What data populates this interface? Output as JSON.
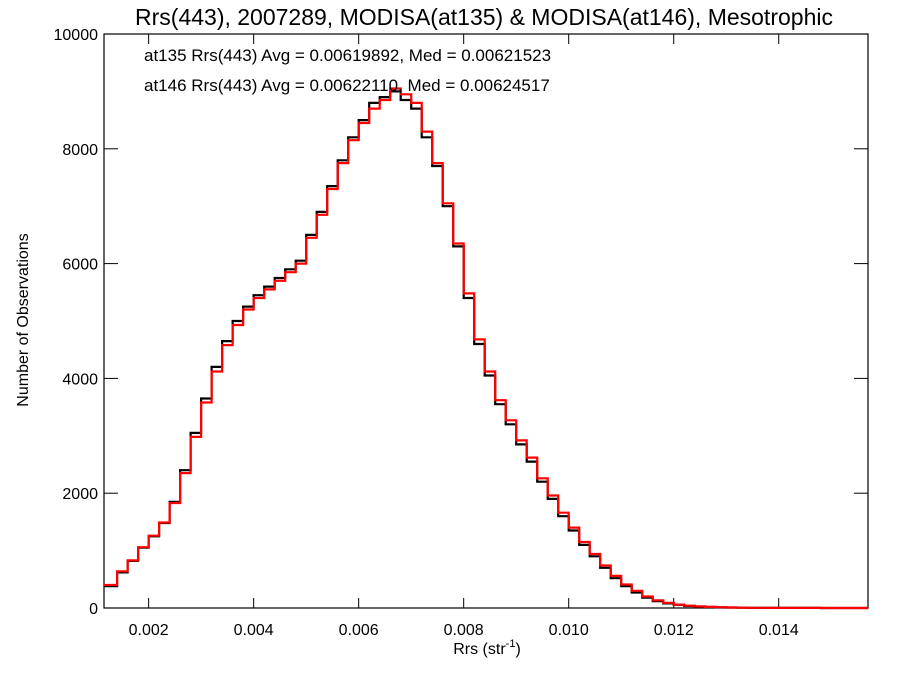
{
  "chart_data": {
    "type": "line",
    "title": "Rrs(443), 2007289, MODISA(at135) & MODISA(at146), Mesotrophic",
    "xlabel_main": "Rrs (str",
    "xlabel_sup": "-1",
    "xlabel_close": ")",
    "ylabel": "Number of Observations",
    "xlim": [
      0.00115,
      0.0157
    ],
    "ylim": [
      0,
      10000
    ],
    "xticks": [
      0.002,
      0.004,
      0.006,
      0.008,
      0.01,
      0.012,
      0.014
    ],
    "xtick_labels": [
      "0.002",
      "0.004",
      "0.006",
      "0.008",
      "0.010",
      "0.012",
      "0.014"
    ],
    "yticks": [
      0,
      2000,
      4000,
      6000,
      8000,
      10000
    ],
    "ytick_labels": [
      "0",
      "2000",
      "4000",
      "6000",
      "8000",
      "10000"
    ],
    "grid": false,
    "legend_position": "top-left",
    "annotations": [
      {
        "text": "at135 Rrs(443) Avg = 0.00619892, Med = 0.00621523",
        "color": "#000000"
      },
      {
        "text": "at146 Rrs(443) Avg = 0.00622110, Med = 0.00624517",
        "color": "#ff0000"
      }
    ],
    "series": [
      {
        "color": "#000000",
        "x": [
          0.00115,
          0.0014,
          0.0016,
          0.0018,
          0.002,
          0.0022,
          0.0024,
          0.0026,
          0.0028,
          0.003,
          0.0032,
          0.0034,
          0.0036,
          0.0038,
          0.004,
          0.0042,
          0.0044,
          0.0046,
          0.0048,
          0.005,
          0.0052,
          0.0054,
          0.0056,
          0.0058,
          0.006,
          0.0062,
          0.0064,
          0.0066,
          0.0068,
          0.007,
          0.0072,
          0.0074,
          0.0076,
          0.0078,
          0.008,
          0.0082,
          0.0084,
          0.0086,
          0.0088,
          0.009,
          0.0092,
          0.0094,
          0.0096,
          0.0098,
          0.01,
          0.0102,
          0.0104,
          0.0106,
          0.0108,
          0.011,
          0.0112,
          0.0114,
          0.0116,
          0.0118,
          0.012,
          0.0122,
          0.0124,
          0.0126,
          0.0128,
          0.013,
          0.0132,
          0.0134,
          0.0136,
          0.0138,
          0.014,
          0.0142,
          0.0144,
          0.0146,
          0.0148,
          0.015,
          0.0152,
          0.0154,
          0.0156
        ],
        "y": [
          380,
          620,
          820,
          1050,
          1250,
          1480,
          1850,
          2400,
          3050,
          3650,
          4200,
          4650,
          5000,
          5250,
          5450,
          5600,
          5750,
          5900,
          6050,
          6500,
          6900,
          7350,
          7800,
          8200,
          8500,
          8800,
          8900,
          9000,
          8850,
          8700,
          8200,
          7700,
          7000,
          6300,
          5400,
          4600,
          4050,
          3550,
          3200,
          2850,
          2550,
          2200,
          1900,
          1600,
          1350,
          1100,
          900,
          700,
          520,
          380,
          270,
          180,
          120,
          80,
          55,
          35,
          25,
          18,
          12,
          8,
          5,
          4,
          3,
          2,
          2,
          1,
          1,
          1,
          0,
          0,
          0,
          0,
          0
        ]
      },
      {
        "color": "#ff0000",
        "x": [
          0.00115,
          0.0014,
          0.0016,
          0.0018,
          0.002,
          0.0022,
          0.0024,
          0.0026,
          0.0028,
          0.003,
          0.0032,
          0.0034,
          0.0036,
          0.0038,
          0.004,
          0.0042,
          0.0044,
          0.0046,
          0.0048,
          0.005,
          0.0052,
          0.0054,
          0.0056,
          0.0058,
          0.006,
          0.0062,
          0.0064,
          0.0066,
          0.0068,
          0.007,
          0.0072,
          0.0074,
          0.0076,
          0.0078,
          0.008,
          0.0082,
          0.0084,
          0.0086,
          0.0088,
          0.009,
          0.0092,
          0.0094,
          0.0096,
          0.0098,
          0.01,
          0.0102,
          0.0104,
          0.0106,
          0.0108,
          0.011,
          0.0112,
          0.0114,
          0.0116,
          0.0118,
          0.012,
          0.0122,
          0.0124,
          0.0126,
          0.0128,
          0.013,
          0.0132,
          0.0134,
          0.0136,
          0.0138,
          0.014,
          0.0142,
          0.0144,
          0.0146,
          0.0148,
          0.015,
          0.0152,
          0.0154,
          0.0156
        ],
        "y": [
          400,
          640,
          830,
          1060,
          1260,
          1490,
          1830,
          2350,
          2980,
          3580,
          4120,
          4580,
          4930,
          5200,
          5400,
          5550,
          5700,
          5850,
          6000,
          6450,
          6850,
          7300,
          7750,
          8150,
          8450,
          8700,
          8850,
          9050,
          8950,
          8800,
          8300,
          7750,
          7050,
          6350,
          5480,
          4680,
          4120,
          3620,
          3270,
          2920,
          2620,
          2260,
          1960,
          1660,
          1400,
          1150,
          940,
          740,
          560,
          410,
          300,
          200,
          135,
          90,
          60,
          40,
          28,
          20,
          14,
          9,
          6,
          4,
          3,
          2,
          2,
          1,
          1,
          1,
          0,
          0,
          0,
          0,
          0
        ]
      }
    ]
  }
}
